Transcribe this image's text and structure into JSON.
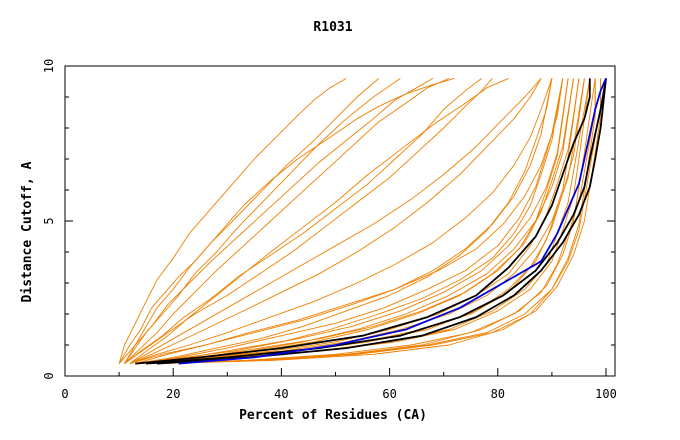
{
  "chart_data": {
    "type": "line",
    "title": "R1031",
    "xlabel": "Percent of Residues (CA)",
    "ylabel": "Distance Cutoff, A",
    "xlim": [
      0,
      100
    ],
    "ylim": [
      0,
      10
    ],
    "x_ticks": [
      "0",
      "20",
      "40",
      "60",
      "80",
      "100"
    ],
    "y_ticks": [
      "0",
      "5",
      "10"
    ],
    "grid": false,
    "legend": "none",
    "colors": {
      "orange": "#f08000",
      "black": "#000000",
      "blue": "#0000e0"
    },
    "series": [
      {
        "color": "orange",
        "x": [
          10,
          12,
          14,
          16,
          18,
          21,
          24,
          28,
          33,
          38,
          43,
          49,
          54,
          58,
          63,
          68,
          72
        ],
        "y": [
          0.4,
          1.0,
          1.5,
          2.2,
          2.6,
          3.2,
          3.7,
          4.5,
          5.5,
          6.3,
          7.0,
          7.7,
          8.3,
          8.7,
          9.1,
          9.4,
          9.6
        ]
      },
      {
        "color": "orange",
        "x": [
          10,
          13,
          15,
          17,
          20,
          23,
          27,
          31,
          36,
          41,
          46,
          50,
          54,
          58
        ],
        "y": [
          0.4,
          1.0,
          1.6,
          2.2,
          2.8,
          3.5,
          4.3,
          5.0,
          5.9,
          6.8,
          7.6,
          8.3,
          9.0,
          9.6
        ]
      },
      {
        "color": "orange",
        "x": [
          11,
          13,
          15,
          18,
          21,
          24,
          28,
          32,
          37,
          42,
          47,
          52,
          57,
          62
        ],
        "y": [
          0.4,
          0.9,
          1.4,
          2.0,
          2.6,
          3.3,
          4.0,
          4.8,
          5.7,
          6.6,
          7.5,
          8.3,
          9.0,
          9.6
        ]
      },
      {
        "color": "orange",
        "x": [
          11,
          14,
          17,
          20,
          24,
          28,
          33,
          38,
          43,
          48,
          53,
          58,
          63,
          67,
          71
        ],
        "y": [
          0.4,
          0.9,
          1.4,
          2.0,
          2.7,
          3.4,
          4.2,
          5.0,
          5.8,
          6.6,
          7.4,
          8.2,
          8.8,
          9.3,
          9.6
        ]
      },
      {
        "color": "orange",
        "x": [
          12,
          15,
          19,
          23,
          28,
          33,
          38,
          44,
          50,
          56,
          62,
          68,
          74,
          78,
          82
        ],
        "y": [
          0.4,
          0.8,
          1.3,
          1.9,
          2.6,
          3.3,
          4.0,
          4.8,
          5.6,
          6.5,
          7.3,
          8.1,
          8.8,
          9.3,
          9.6
        ]
      },
      {
        "color": "orange",
        "x": [
          12,
          16,
          21,
          27,
          33,
          40,
          47,
          54,
          61,
          67,
          73,
          78,
          83,
          86,
          88
        ],
        "y": [
          0.4,
          0.7,
          1.1,
          1.6,
          2.1,
          2.7,
          3.3,
          4.0,
          4.8,
          5.6,
          6.5,
          7.4,
          8.3,
          9.0,
          9.6
        ]
      },
      {
        "color": "orange",
        "x": [
          12,
          17,
          23,
          30,
          38,
          46,
          54,
          61,
          68,
          74,
          79,
          83,
          86,
          88,
          90
        ],
        "y": [
          0.4,
          0.7,
          1.0,
          1.4,
          1.9,
          2.4,
          3.0,
          3.6,
          4.3,
          5.1,
          5.9,
          6.8,
          7.7,
          8.6,
          9.6
        ]
      },
      {
        "color": "orange",
        "x": [
          13,
          20,
          28,
          36,
          44,
          52,
          60,
          67,
          73,
          78,
          82,
          85,
          87,
          89,
          90
        ],
        "y": [
          0.4,
          0.6,
          0.9,
          1.2,
          1.6,
          2.1,
          2.6,
          3.2,
          3.9,
          4.7,
          5.6,
          6.6,
          7.6,
          8.6,
          9.6
        ]
      },
      {
        "color": "orange",
        "x": [
          13,
          22,
          31,
          40,
          49,
          58,
          66,
          73,
          79,
          83,
          86,
          88,
          90,
          91,
          92
        ],
        "y": [
          0.4,
          0.6,
          0.8,
          1.1,
          1.5,
          2.0,
          2.5,
          3.1,
          3.8,
          4.6,
          5.5,
          6.5,
          7.6,
          8.6,
          9.6
        ]
      },
      {
        "color": "orange",
        "x": [
          14,
          24,
          34,
          44,
          54,
          63,
          71,
          78,
          83,
          87,
          89,
          91,
          92,
          93
        ],
        "y": [
          0.4,
          0.6,
          0.8,
          1.1,
          1.5,
          2.0,
          2.6,
          3.3,
          4.1,
          5.0,
          6.0,
          7.1,
          8.3,
          9.6
        ]
      },
      {
        "color": "orange",
        "x": [
          14,
          26,
          38,
          50,
          60,
          69,
          76,
          82,
          86,
          89,
          91,
          93,
          94,
          95
        ],
        "y": [
          0.4,
          0.6,
          0.8,
          1.1,
          1.5,
          2.0,
          2.6,
          3.3,
          4.2,
          5.2,
          6.2,
          7.3,
          8.4,
          9.6
        ]
      },
      {
        "color": "orange",
        "x": [
          15,
          28,
          42,
          55,
          66,
          75,
          82,
          86,
          89,
          91,
          93,
          94,
          95,
          96
        ],
        "y": [
          0.4,
          0.6,
          0.8,
          1.1,
          1.5,
          2.0,
          2.7,
          3.5,
          4.4,
          5.4,
          6.4,
          7.4,
          8.5,
          9.6
        ]
      },
      {
        "color": "orange",
        "x": [
          15,
          30,
          46,
          60,
          71,
          79,
          85,
          89,
          91,
          93,
          94,
          95,
          96,
          97
        ],
        "y": [
          0.4,
          0.6,
          0.8,
          1.1,
          1.5,
          2.1,
          2.8,
          3.6,
          4.6,
          5.6,
          6.6,
          7.6,
          8.6,
          9.6
        ]
      },
      {
        "color": "orange",
        "x": [
          16,
          33,
          50,
          64,
          75,
          83,
          88,
          91,
          93,
          95,
          96,
          97,
          98,
          98
        ],
        "y": [
          0.4,
          0.5,
          0.7,
          1.0,
          1.4,
          2.0,
          2.7,
          3.6,
          4.6,
          5.6,
          6.6,
          7.6,
          8.6,
          9.6
        ]
      },
      {
        "color": "orange",
        "x": [
          17,
          36,
          54,
          68,
          79,
          86,
          90,
          93,
          95,
          96,
          97,
          98,
          99,
          99
        ],
        "y": [
          0.4,
          0.5,
          0.7,
          1.0,
          1.4,
          2.0,
          2.8,
          3.7,
          4.7,
          5.7,
          6.7,
          7.7,
          8.7,
          9.6
        ]
      },
      {
        "color": "orange",
        "x": [
          12,
          18,
          26,
          35,
          44,
          53,
          61,
          68,
          74,
          79,
          83,
          86,
          88,
          89,
          90
        ],
        "y": [
          0.4,
          0.7,
          1.0,
          1.4,
          1.8,
          2.3,
          2.8,
          3.4,
          4.1,
          4.9,
          5.8,
          6.8,
          7.8,
          8.7,
          9.6
        ]
      },
      {
        "color": "orange",
        "x": [
          13,
          21,
          30,
          40,
          50,
          59,
          67,
          74,
          80,
          84,
          87,
          89,
          91,
          92
        ],
        "y": [
          0.4,
          0.6,
          0.9,
          1.3,
          1.7,
          2.2,
          2.8,
          3.4,
          4.2,
          5.1,
          6.1,
          7.2,
          8.4,
          9.6
        ]
      },
      {
        "color": "orange",
        "x": [
          14,
          25,
          36,
          47,
          57,
          66,
          74,
          80,
          85,
          88,
          90,
          92,
          93,
          94
        ],
        "y": [
          0.4,
          0.6,
          0.9,
          1.2,
          1.6,
          2.1,
          2.7,
          3.4,
          4.3,
          5.3,
          6.3,
          7.4,
          8.5,
          9.6
        ]
      },
      {
        "color": "orange",
        "x": [
          15,
          29,
          43,
          56,
          67,
          76,
          82,
          87,
          90,
          92,
          94,
          95,
          96
        ],
        "y": [
          0.4,
          0.6,
          0.8,
          1.1,
          1.5,
          2.1,
          2.8,
          3.7,
          4.8,
          5.9,
          7.1,
          8.3,
          9.6
        ]
      },
      {
        "color": "orange",
        "x": [
          11,
          14,
          18,
          22,
          27,
          32,
          38,
          44,
          50,
          56,
          61,
          66,
          70,
          74,
          77
        ],
        "y": [
          0.4,
          0.8,
          1.3,
          1.9,
          2.5,
          3.2,
          3.9,
          4.6,
          5.4,
          6.2,
          7.0,
          7.8,
          8.6,
          9.2,
          9.6
        ]
      },
      {
        "color": "orange",
        "x": [
          12,
          16,
          20,
          25,
          31,
          37,
          43,
          50,
          57,
          64,
          70,
          76,
          81,
          85,
          88
        ],
        "y": [
          0.4,
          0.8,
          1.2,
          1.7,
          2.3,
          2.9,
          3.5,
          4.2,
          4.9,
          5.7,
          6.5,
          7.4,
          8.3,
          9.0,
          9.6
        ]
      },
      {
        "color": "orange",
        "x": [
          13,
          19,
          26,
          34,
          43,
          52,
          61,
          69,
          76,
          81,
          85,
          88,
          90,
          91,
          92
        ],
        "y": [
          0.4,
          0.7,
          1.0,
          1.4,
          1.8,
          2.3,
          2.8,
          3.4,
          4.1,
          4.9,
          5.8,
          6.8,
          7.8,
          8.7,
          9.6
        ]
      },
      {
        "color": "orange",
        "x": [
          16,
          34,
          52,
          66,
          77,
          84,
          89,
          92,
          94,
          95,
          96,
          97,
          98
        ],
        "y": [
          0.4,
          0.5,
          0.7,
          1.0,
          1.5,
          2.1,
          2.9,
          3.9,
          5.0,
          6.1,
          7.2,
          8.4,
          9.6
        ]
      },
      {
        "color": "orange",
        "x": [
          18,
          38,
          57,
          71,
          81,
          87,
          91,
          94,
          96,
          97,
          98,
          99,
          99
        ],
        "y": [
          0.4,
          0.5,
          0.7,
          1.0,
          1.5,
          2.1,
          2.9,
          3.9,
          5.0,
          6.1,
          7.2,
          8.4,
          9.6
        ]
      },
      {
        "color": "orange",
        "x": [
          11,
          15,
          19,
          24,
          30,
          36,
          42,
          48,
          54,
          60,
          65,
          70,
          74,
          77,
          79
        ],
        "y": [
          0.4,
          0.9,
          1.4,
          2.0,
          2.6,
          3.3,
          4.0,
          4.8,
          5.6,
          6.4,
          7.2,
          8.0,
          8.7,
          9.2,
          9.6
        ]
      },
      {
        "color": "orange",
        "x": [
          14,
          27,
          40,
          52,
          62,
          71,
          78,
          83,
          87,
          90,
          92,
          93,
          94,
          95
        ],
        "y": [
          0.4,
          0.6,
          0.8,
          1.1,
          1.5,
          2.0,
          2.6,
          3.3,
          4.1,
          5.0,
          6.0,
          7.1,
          8.3,
          9.6
        ]
      },
      {
        "color": "orange",
        "x": [
          15,
          31,
          47,
          61,
          72,
          80,
          86,
          90,
          92,
          94,
          95,
          96,
          97
        ],
        "y": [
          0.4,
          0.6,
          0.8,
          1.1,
          1.5,
          2.1,
          2.8,
          3.7,
          4.7,
          5.8,
          7.0,
          8.3,
          9.6
        ]
      },
      {
        "color": "orange",
        "x": [
          13,
          23,
          33,
          43,
          53,
          62,
          70,
          77,
          82,
          86,
          89,
          91,
          92,
          93
        ],
        "y": [
          0.4,
          0.6,
          0.9,
          1.2,
          1.6,
          2.1,
          2.7,
          3.4,
          4.2,
          5.1,
          6.1,
          7.2,
          8.4,
          9.6
        ]
      },
      {
        "color": "orange",
        "x": [
          10,
          11,
          13,
          15,
          17,
          20,
          23,
          27,
          31,
          35,
          39,
          43,
          46,
          49,
          52
        ],
        "y": [
          0.4,
          1.0,
          1.7,
          2.4,
          3.1,
          3.8,
          4.6,
          5.4,
          6.2,
          7.0,
          7.7,
          8.4,
          8.9,
          9.3,
          9.6
        ]
      },
      {
        "color": "orange",
        "x": [
          11,
          13,
          16,
          19,
          23,
          27,
          32,
          37,
          42,
          47,
          52,
          57,
          61,
          65,
          68
        ],
        "y": [
          0.4,
          1.0,
          1.6,
          2.3,
          3.0,
          3.7,
          4.5,
          5.3,
          6.1,
          6.9,
          7.6,
          8.3,
          8.9,
          9.3,
          9.6
        ]
      },
      {
        "color": "orange",
        "x": [
          17,
          35,
          53,
          67,
          78,
          85,
          90,
          93,
          95,
          96,
          97,
          98,
          98
        ],
        "y": [
          0.4,
          0.5,
          0.7,
          1.0,
          1.4,
          2.0,
          2.8,
          3.8,
          4.9,
          6.0,
          7.2,
          8.4,
          9.6
        ]
      },
      {
        "color": "orange",
        "x": [
          14,
          24,
          35,
          46,
          56,
          65,
          73,
          79,
          84,
          87,
          90,
          92,
          93,
          94
        ],
        "y": [
          0.4,
          0.6,
          0.8,
          1.1,
          1.5,
          2.0,
          2.6,
          3.3,
          4.1,
          5.0,
          6.1,
          7.2,
          8.4,
          9.6
        ]
      },
      {
        "color": "black",
        "x": [
          13,
          25,
          40,
          55,
          67,
          76,
          82,
          87,
          90,
          92,
          94,
          96,
          97,
          97
        ],
        "y": [
          0.4,
          0.6,
          0.9,
          1.3,
          1.9,
          2.6,
          3.5,
          4.5,
          5.5,
          6.5,
          7.5,
          8.3,
          9.0,
          9.6
        ]
      },
      {
        "color": "black",
        "x": [
          15,
          30,
          47,
          62,
          73,
          81,
          87,
          91,
          94,
          96,
          97,
          98,
          99,
          100
        ],
        "y": [
          0.4,
          0.6,
          0.9,
          1.3,
          1.9,
          2.6,
          3.4,
          4.3,
          5.2,
          6.1,
          7.0,
          7.8,
          8.6,
          9.6
        ]
      },
      {
        "color": "black",
        "x": [
          17,
          34,
          52,
          66,
          76,
          83,
          88,
          92,
          95,
          97,
          98,
          99,
          100
        ],
        "y": [
          0.4,
          0.6,
          0.9,
          1.3,
          1.9,
          2.6,
          3.4,
          4.3,
          5.2,
          6.1,
          7.0,
          8.0,
          9.6
        ]
      },
      {
        "color": "blue",
        "x": [
          21,
          35,
          50,
          63,
          73,
          81,
          88,
          91,
          93,
          95,
          96,
          97,
          98,
          99,
          100
        ],
        "y": [
          0.4,
          0.6,
          1.0,
          1.5,
          2.2,
          3.0,
          3.7,
          4.6,
          5.4,
          6.2,
          7.0,
          7.8,
          8.6,
          9.2,
          9.6
        ]
      }
    ]
  }
}
